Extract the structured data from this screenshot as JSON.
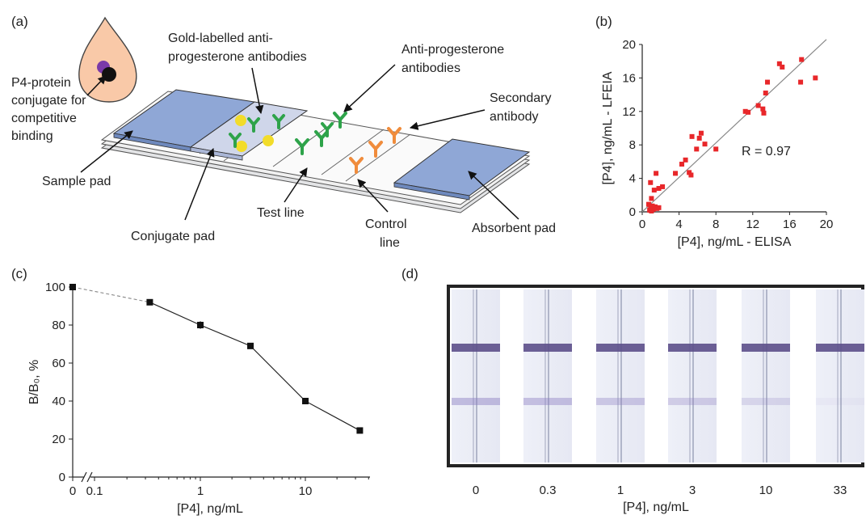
{
  "panels": {
    "a": {
      "label": "(a)",
      "callouts": {
        "conjugate": [
          "P4-protein",
          "conjugate for",
          "competitive",
          "binding"
        ],
        "gold": [
          "Gold-labelled anti-",
          "progesterone antibodies"
        ],
        "anti": [
          "Anti-progesterone",
          "antibodies"
        ],
        "secondary": [
          "Secondary",
          "antibody"
        ],
        "sample_pad": "Sample pad",
        "conjugate_pad": "Conjugate pad",
        "test_line": "Test line",
        "control_line": [
          "Control",
          "line"
        ],
        "absorbent_pad": "Absorbent pad"
      }
    },
    "b": {
      "label": "(b)",
      "r_text": "R = 0.97"
    },
    "c": {
      "label": "(c)"
    },
    "d": {
      "label": "(d)",
      "xlabel": "[P4], ng/mL",
      "strip_labels": [
        "0",
        "0.3",
        "1",
        "3",
        "10",
        "33"
      ]
    }
  },
  "colors": {
    "scatter_points": "#e8272a",
    "strip_line": "#5c4f8a",
    "pad_blue": "#8fa7d6",
    "gold": "#f2dc2a",
    "green": "#2ea34a",
    "orange": "#f08c3c",
    "cell": "#f9c9a8"
  },
  "chart_data": [
    {
      "panel": "b",
      "type": "scatter",
      "xlabel": "[P4], ng/mL - ELISA",
      "ylabel": "[P4], ng/mL - LFEIA",
      "xlim": [
        0,
        20
      ],
      "ylim": [
        0,
        20
      ],
      "xticks": [
        0,
        4,
        8,
        12,
        16,
        20
      ],
      "yticks": [
        0,
        4,
        8,
        12,
        16,
        20
      ],
      "fit_line": [
        [
          0,
          0
        ],
        [
          20,
          20.6
        ]
      ],
      "points": [
        [
          0.8,
          0.2
        ],
        [
          0.9,
          0.5
        ],
        [
          1.0,
          0.1
        ],
        [
          1.1,
          0.7
        ],
        [
          0.7,
          0.9
        ],
        [
          1.2,
          0.3
        ],
        [
          1.4,
          0.6
        ],
        [
          1.0,
          1.6
        ],
        [
          1.6,
          0.4
        ],
        [
          1.8,
          0.5
        ],
        [
          0.9,
          3.5
        ],
        [
          1.3,
          2.6
        ],
        [
          1.5,
          4.6
        ],
        [
          1.8,
          2.8
        ],
        [
          2.2,
          3.0
        ],
        [
          3.6,
          4.6
        ],
        [
          4.3,
          5.7
        ],
        [
          4.7,
          6.2
        ],
        [
          5.1,
          4.7
        ],
        [
          5.3,
          4.4
        ],
        [
          5.4,
          9.0
        ],
        [
          5.9,
          7.5
        ],
        [
          6.2,
          8.8
        ],
        [
          6.4,
          9.4
        ],
        [
          6.8,
          8.1
        ],
        [
          8.0,
          7.5
        ],
        [
          11.2,
          12.0
        ],
        [
          11.5,
          11.9
        ],
        [
          12.6,
          12.7
        ],
        [
          13.2,
          11.8
        ],
        [
          13.1,
          12.3
        ],
        [
          13.4,
          14.2
        ],
        [
          13.6,
          15.5
        ],
        [
          14.9,
          17.7
        ],
        [
          15.2,
          17.3
        ],
        [
          17.2,
          15.5
        ],
        [
          17.3,
          18.2
        ],
        [
          18.8,
          16.0
        ]
      ]
    },
    {
      "panel": "c",
      "type": "line",
      "xlabel": "[P4], ng/mL",
      "ylabel": "B/B₀, %",
      "ylim": [
        0,
        100
      ],
      "yticks": [
        0,
        20,
        40,
        60,
        80,
        100
      ],
      "xscale": "log",
      "xtick_labels": [
        "0",
        "0.1",
        "1",
        "10"
      ],
      "x": [
        0,
        0.33,
        1,
        3,
        10,
        33
      ],
      "y": [
        100,
        92,
        80,
        69,
        40,
        24.5
      ],
      "errors": [
        0,
        0,
        2,
        0,
        0,
        0
      ]
    }
  ]
}
